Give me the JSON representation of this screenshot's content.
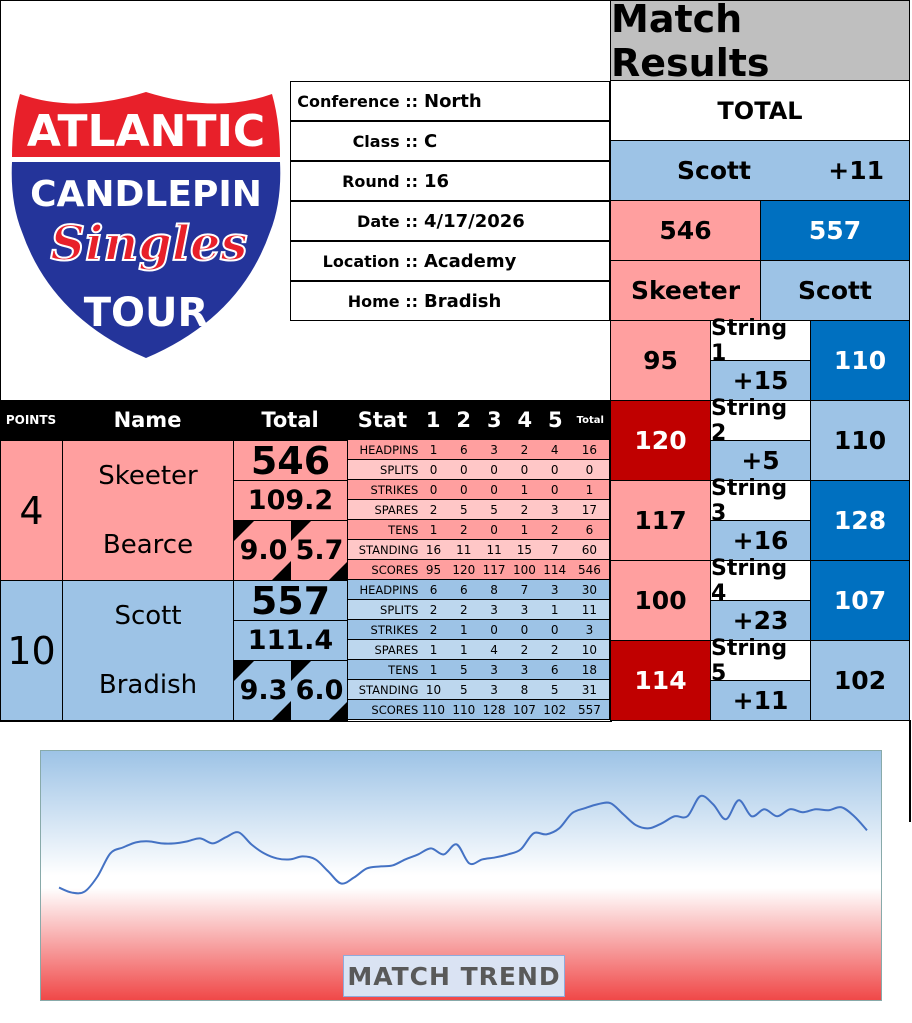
{
  "logo": {
    "line1": "ATLANTIC",
    "line2": "CANDLEPIN",
    "line3": "Singles",
    "line4": "TOUR"
  },
  "info": [
    {
      "label": "Conference ::",
      "value": "North"
    },
    {
      "label": "Class ::",
      "value": "C"
    },
    {
      "label": "Round ::",
      "value": "16"
    },
    {
      "label": "Date ::",
      "value": "4/17/2026"
    },
    {
      "label": "Location ::",
      "value": "Academy"
    },
    {
      "label": "Home ::",
      "value": "Bradish"
    }
  ],
  "results": {
    "title": "Match Results",
    "total_label": "TOTAL",
    "leader": "Scott",
    "margin": "+11",
    "home_total": "546",
    "away_total": "557",
    "home_name": "Skeeter",
    "away_name": "Scott",
    "strings": [
      {
        "label": "String 1",
        "diff": "+15",
        "home": "95",
        "away": "110"
      },
      {
        "label": "String 2",
        "diff": "+5",
        "home": "120",
        "away": "110"
      },
      {
        "label": "String 3",
        "diff": "+16",
        "home": "117",
        "away": "128"
      },
      {
        "label": "String 4",
        "diff": "+23",
        "home": "100",
        "away": "107"
      },
      {
        "label": "String 5",
        "diff": "+11",
        "home": "114",
        "away": "102"
      }
    ],
    "colors": {
      "home_win": "#c00000",
      "away_win": "#0070c0",
      "home": "#ff9f9f",
      "away": "#9dc3e6"
    }
  },
  "table": {
    "headers": {
      "points": "POINTS",
      "name": "Name",
      "total": "Total",
      "stat": "Stat",
      "g1": "1",
      "g2": "2",
      "g3": "3",
      "g4": "4",
      "g5": "5",
      "gt": "Total"
    },
    "teams": [
      {
        "points": "4",
        "player": "Skeeter",
        "opponent_home": "Bearce",
        "total": "546",
        "avg": "109.2",
        "a": "9.0",
        "b": "5.7",
        "stats": [
          {
            "label": "HEADPINS",
            "v": [
              "1",
              "6",
              "3",
              "2",
              "4",
              "16"
            ]
          },
          {
            "label": "SPLITS",
            "v": [
              "0",
              "0",
              "0",
              "0",
              "0",
              "0"
            ]
          },
          {
            "label": "STRIKES",
            "v": [
              "0",
              "0",
              "0",
              "1",
              "0",
              "1"
            ]
          },
          {
            "label": "SPARES",
            "v": [
              "2",
              "5",
              "5",
              "2",
              "3",
              "17"
            ]
          },
          {
            "label": "TENS",
            "v": [
              "1",
              "2",
              "0",
              "1",
              "2",
              "6"
            ]
          },
          {
            "label": "STANDING",
            "v": [
              "16",
              "11",
              "11",
              "15",
              "7",
              "60"
            ]
          },
          {
            "label": "SCORES",
            "v": [
              "95",
              "120",
              "117",
              "100",
              "114",
              "546"
            ]
          }
        ]
      },
      {
        "points": "10",
        "player": "Scott",
        "opponent_home": "Bradish",
        "total": "557",
        "avg": "111.4",
        "a": "9.3",
        "b": "6.0",
        "stats": [
          {
            "label": "HEADPINS",
            "v": [
              "6",
              "6",
              "8",
              "7",
              "3",
              "30"
            ]
          },
          {
            "label": "SPLITS",
            "v": [
              "2",
              "2",
              "3",
              "3",
              "1",
              "11"
            ]
          },
          {
            "label": "STRIKES",
            "v": [
              "2",
              "1",
              "0",
              "0",
              "0",
              "3"
            ]
          },
          {
            "label": "SPARES",
            "v": [
              "1",
              "1",
              "4",
              "2",
              "2",
              "10"
            ]
          },
          {
            "label": "TENS",
            "v": [
              "1",
              "5",
              "3",
              "3",
              "6",
              "18"
            ]
          },
          {
            "label": "STANDING",
            "v": [
              "10",
              "5",
              "3",
              "8",
              "5",
              "31"
            ]
          },
          {
            "label": "SCORES",
            "v": [
              "110",
              "110",
              "128",
              "107",
              "102",
              "557"
            ]
          }
        ]
      }
    ]
  },
  "chart_data": {
    "type": "line",
    "title": "MATCH TREND",
    "grid": false,
    "ylim": [
      0,
      100
    ],
    "values": [
      45.6,
      43.6,
      44,
      50,
      59.2,
      61.6,
      63.6,
      64,
      63.2,
      63.2,
      64,
      65.2,
      63.2,
      65.6,
      67.6,
      62.8,
      59.2,
      57.2,
      56.8,
      58,
      56.8,
      52,
      47.2,
      49.6,
      53.2,
      54,
      54.4,
      56.8,
      58.8,
      61.2,
      58.8,
      62.8,
      55.2,
      56.8,
      57.6,
      58.8,
      60.8,
      67.2,
      66.8,
      69.2,
      75.2,
      77.2,
      78.8,
      79.2,
      74.8,
      70.4,
      69.2,
      71.2,
      74,
      74,
      82,
      78.8,
      72.8,
      80.4,
      74,
      76.8,
      74,
      76.8,
      75.6,
      76.8,
      76.4,
      77.6,
      74,
      68.4
    ],
    "line_color": "#4472c4"
  }
}
